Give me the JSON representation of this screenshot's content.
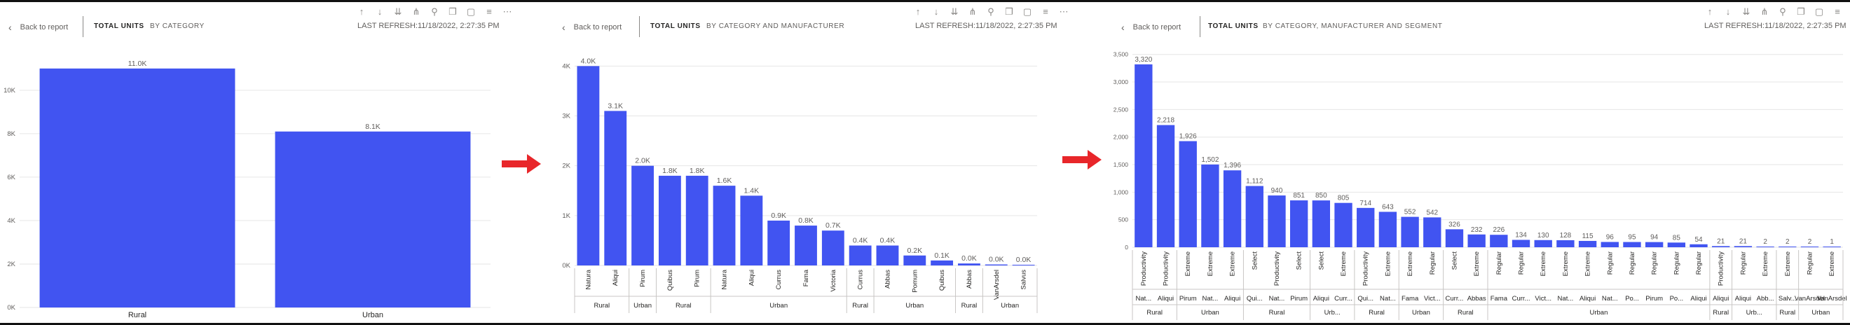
{
  "panels": [
    {
      "back_label": "Back to report",
      "tab_metric": "TOTAL UNITS",
      "tab_breakdown": "BY CATEGORY",
      "refresh": "LAST REFRESH:11/18/2022, 2:27:35 PM"
    },
    {
      "back_label": "Back to report",
      "tab_metric": "TOTAL UNITS",
      "tab_breakdown": "BY CATEGORY AND MANUFACTURER",
      "refresh": "LAST REFRESH:11/18/2022, 2:27:35 PM"
    },
    {
      "back_label": "Back to report",
      "tab_metric": "TOTAL UNITS",
      "tab_breakdown": "BY CATEGORY, MANUFACTURER AND SEGMENT",
      "refresh": "LAST REFRESH:11/18/2022, 2:27:35 PM"
    }
  ],
  "toolbar_icons": [
    "arrow-up-icon",
    "arrow-down-icon",
    "double-arrow-down-icon",
    "expand-hierarchy-icon",
    "pin-icon",
    "copy-icon",
    "focus-mode-icon",
    "filter-icon",
    "more-options-icon"
  ],
  "colors": {
    "bar": "#4154f1",
    "arrow": "#e8262a",
    "grid": "#e6e6e6",
    "text": "#605e5c"
  },
  "chart_data": [
    {
      "type": "bar",
      "title": "",
      "xlabel": "",
      "ylabel": "",
      "categories": [
        "Rural",
        "Urban"
      ],
      "values": [
        11000,
        8100
      ],
      "data_labels": [
        "11.0K",
        "8.1K"
      ],
      "yticks": [
        0,
        2000,
        4000,
        6000,
        8000,
        10000
      ],
      "ytick_labels": [
        "0K",
        "2K",
        "4K",
        "6K",
        "8K",
        "10K"
      ],
      "ylim": [
        0,
        11800
      ],
      "grid": true
    },
    {
      "type": "bar",
      "title": "",
      "xlabel": "",
      "ylabel": "",
      "categories": [
        "Natura",
        "Aliqui",
        "Pirum",
        "Quibus",
        "Pirum",
        "Natura",
        "Aliqui",
        "Currus",
        "Fama",
        "Victoria",
        "Currus",
        "Abbas",
        "Pomum",
        "Quibus",
        "Abbas",
        "VanArsdel",
        "Salvus"
      ],
      "values": [
        4000,
        3100,
        2000,
        1800,
        1800,
        1600,
        1400,
        900,
        800,
        700,
        400,
        400,
        200,
        100,
        40,
        20,
        10
      ],
      "data_labels": [
        "4.0K",
        "3.1K",
        "2.0K",
        "1.8K",
        "1.8K",
        "1.6K",
        "1.4K",
        "0.9K",
        "0.8K",
        "0.7K",
        "0.4K",
        "0.4K",
        "0.2K",
        "0.1K",
        "0.0K",
        "0.0K",
        "0.0K"
      ],
      "groups": [
        {
          "label": "Rural",
          "span": 2
        },
        {
          "label": "Urban",
          "span": 1
        },
        {
          "label": "Rural",
          "span": 2
        },
        {
          "label": "Urban",
          "span": 5
        },
        {
          "label": "Rural",
          "span": 1
        },
        {
          "label": "Urban",
          "span": 3
        },
        {
          "label": "Rural",
          "span": 1
        },
        {
          "label": "Urban",
          "span": 2
        }
      ],
      "yticks": [
        0,
        1000,
        2000,
        3000,
        4000
      ],
      "ytick_labels": [
        "0K",
        "1K",
        "2K",
        "3K",
        "4K"
      ],
      "ylim": [
        0,
        4300
      ],
      "grid": true
    },
    {
      "type": "bar",
      "title": "",
      "xlabel": "",
      "ylabel": "",
      "categories": [
        "Productivity",
        "Productivity",
        "Extreme",
        "Extreme",
        "Extreme",
        "Select",
        "Productivity",
        "Select",
        "Select",
        "Extreme",
        "Productivity",
        "Extreme",
        "Extreme",
        "Regular",
        "Select",
        "Extreme",
        "Regular",
        "Regular",
        "Extreme",
        "Extreme",
        "Extreme",
        "Regular",
        "Regular",
        "Regular",
        "Regular",
        "Regular",
        "Productivity",
        "Regular",
        "Extreme",
        "Extreme",
        "Regular",
        "Extreme"
      ],
      "level2": [
        "Nat...",
        "Aliqui",
        "Pirum",
        "Nat...",
        "Aliqui",
        "Qui...",
        "Nat...",
        "Pirum",
        "Aliqui",
        "Curr...",
        "Qui...",
        "Nat...",
        "Fama",
        "Vict...",
        "Curr...",
        "Abbas",
        "Fama",
        "Curr...",
        "Vict...",
        "Nat...",
        "Aliqui",
        "Nat...",
        "Po...",
        "Pirum",
        "Po...",
        "Aliqui",
        "Aliqui",
        "Aliqui",
        "Abb...",
        "Salv...",
        "VanArsdel",
        "VanArsdel"
      ],
      "values": [
        3320,
        2218,
        1926,
        1502,
        1396,
        1112,
        940,
        851,
        850,
        805,
        714,
        643,
        552,
        542,
        326,
        232,
        226,
        134,
        130,
        128,
        115,
        96,
        95,
        94,
        85,
        54,
        21,
        21,
        2,
        2,
        2,
        1
      ],
      "data_labels": [
        "3,320",
        "2,218",
        "1,926",
        "1,502",
        "1,396",
        "1,112",
        "940",
        "851",
        "850",
        "805",
        "714",
        "643",
        "552",
        "542",
        "326",
        "232",
        "226",
        "134",
        "130",
        "128",
        "115",
        "96",
        "95",
        "94",
        "85",
        "54",
        "21",
        "21",
        "2",
        "2",
        "2",
        "1"
      ],
      "groups": [
        {
          "label": "Rural",
          "span": 2
        },
        {
          "label": "Urban",
          "span": 3
        },
        {
          "label": "Rural",
          "span": 3
        },
        {
          "label": "Urb...",
          "span": 2
        },
        {
          "label": "Rural",
          "span": 2
        },
        {
          "label": "Urban",
          "span": 2
        },
        {
          "label": "Rural",
          "span": 2
        },
        {
          "label": "Urban",
          "span": 10
        },
        {
          "label": "Rural",
          "span": 1
        },
        {
          "label": "Urb...",
          "span": 2
        },
        {
          "label": "Rural",
          "span": 1
        },
        {
          "label": "Urban",
          "span": 2
        }
      ],
      "yticks": [
        0,
        500,
        1000,
        1500,
        2000,
        2500,
        3000,
        3500
      ],
      "ytick_labels": [
        "0",
        "500",
        "1,000",
        "1,500",
        "2,000",
        "2,500",
        "3,000",
        "3,500"
      ],
      "ylim": [
        0,
        3560
      ],
      "grid": true
    }
  ]
}
